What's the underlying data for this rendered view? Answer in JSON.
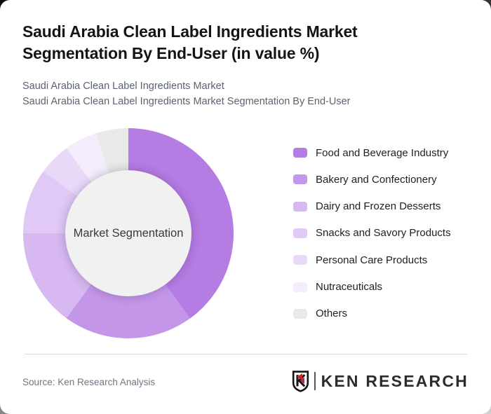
{
  "header": {
    "title": "Saudi Arabia Clean Label Ingredients Market Segmentation By End-User (in value %)",
    "subtitle1": "Saudi Arabia Clean Label Ingredients Market",
    "subtitle2": "Saudi Arabia Clean Label Ingredients Market Segmentation By End-User"
  },
  "chart_data": {
    "type": "pie",
    "subtype": "donut",
    "title": "Saudi Arabia Clean Label Ingredients Market Segmentation By End-User (in value %)",
    "center_label": "Market Segmentation",
    "categories": [
      "Food and Beverage Industry",
      "Bakery and Confectionery",
      "Dairy and Frozen Desserts",
      "Snacks and Savory Products",
      "Personal Care Products",
      "Nutraceuticals",
      "Others"
    ],
    "values": [
      40,
      20,
      15,
      10,
      5,
      5,
      5
    ],
    "unit": "value %",
    "colors": [
      "#b57ce3",
      "#c496e9",
      "#d7b8f1",
      "#e0c9f5",
      "#e9d9f9",
      "#f3edfb",
      "#e9e9e9"
    ],
    "hole_color": "#f1f1f1",
    "start_angle_deg": 0,
    "direction": "clockwise",
    "legend_position": "right"
  },
  "footer": {
    "source": "Source: Ken Research Analysis",
    "logo_text": "KEN RESEARCH",
    "logo_accent_color": "#c1272d"
  }
}
